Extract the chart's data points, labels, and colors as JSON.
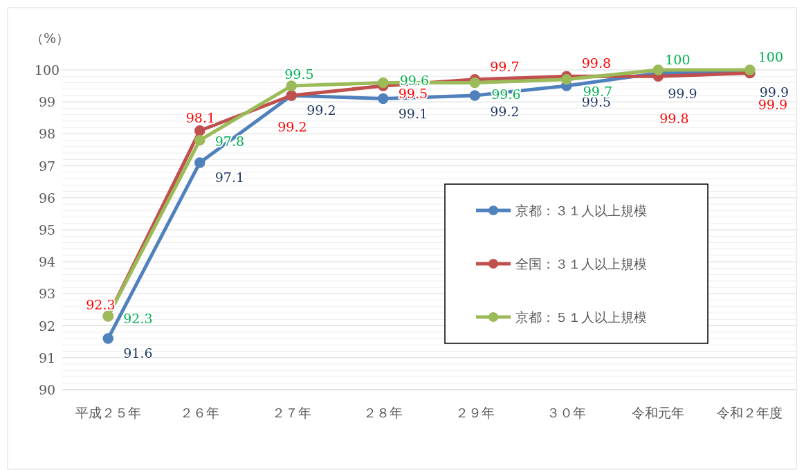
{
  "chart_data": {
    "type": "line",
    "ylabel": "（%）",
    "categories": [
      "平成２５年",
      "２６年",
      "２７年",
      "２８年",
      "２９年",
      "３０年",
      "令和元年",
      "令和２年度"
    ],
    "series": [
      {
        "name": "京都：３１人以上規模",
        "color": "#4f81bd",
        "values": [
          91.6,
          97.1,
          99.2,
          99.1,
          99.2,
          99.5,
          99.9,
          99.9
        ]
      },
      {
        "name": "全国：３１人以上規模",
        "color": "#c0504d",
        "values": [
          92.3,
          98.1,
          99.2,
          99.5,
          99.7,
          99.8,
          99.8,
          99.9
        ]
      },
      {
        "name": "京都：５１人以上規模",
        "color": "#9bbb59",
        "values": [
          92.3,
          97.8,
          99.5,
          99.6,
          99.6,
          99.7,
          100,
          100
        ]
      }
    ],
    "ylim": [
      90,
      100
    ],
    "yticks": [
      90,
      91,
      92,
      93,
      94,
      95,
      96,
      97,
      98,
      99,
      100
    ],
    "grid": "y",
    "legend": "right",
    "marker": "circle",
    "line_style": "solid",
    "data_labels": true
  }
}
